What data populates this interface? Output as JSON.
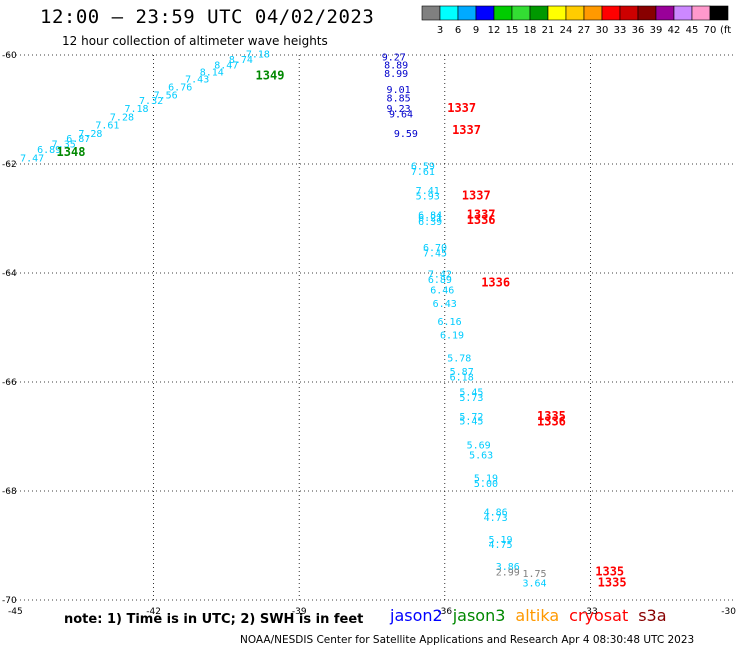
{
  "title": "12:00 – 23:59 UTC 04/02/2023",
  "subtitle": "12 hour collection of altimeter wave heights",
  "colorbar": {
    "colors": [
      "#808080",
      "#00ffff",
      "#00aaff",
      "#0000ff",
      "#00cc00",
      "#33dd33",
      "#009900",
      "#ffff00",
      "#ffcc00",
      "#ff9900",
      "#ff0000",
      "#cc0000",
      "#880000",
      "#990099",
      "#cc88ff",
      "#ff99cc",
      "#000000"
    ],
    "labels": [
      "3",
      "6",
      "9",
      "12",
      "15",
      "18",
      "21",
      "24",
      "27",
      "30",
      "33",
      "36",
      "39",
      "42",
      "45",
      "70"
    ],
    "unit": "(ft)"
  },
  "note": "note: 1) Time is in UTC; 2) SWH is in feet",
  "legend": [
    {
      "name": "jason2",
      "color": "#0000ff"
    },
    {
      "name": "jason3",
      "color": "#008800"
    },
    {
      "name": "altika",
      "color": "#ff9900"
    },
    {
      "name": "cryosat",
      "color": "#ff0000"
    },
    {
      "name": "s3a",
      "color": "#880000"
    }
  ],
  "credit": "NOAA/NESDIS Center for Satellite Applications and Research    Apr  4 08:30:48 UTC 2023",
  "chart_data": {
    "type": "scatter",
    "xlim": [
      -45,
      -30
    ],
    "ylim": [
      -70,
      -60
    ],
    "xticks": [
      "-45",
      "-42",
      "-39",
      "-36",
      "-33",
      "-30"
    ],
    "xtick_values": [
      -45,
      -42,
      -39,
      -36,
      -33,
      -30
    ],
    "yticks": [
      "-60",
      "-62",
      "-64",
      "-66",
      "-68",
      "-70"
    ],
    "ytick_values": [
      -60,
      -62,
      -64,
      -66,
      -68,
      -70
    ],
    "grid": true,
    "series": [
      {
        "name": "jason3",
        "color": "#00ccff",
        "points": [
          {
            "lon": -44.75,
            "lat": -61.95,
            "v": "7.47"
          },
          {
            "lon": -44.4,
            "lat": -61.8,
            "v": "6.89"
          },
          {
            "lon": -44.1,
            "lat": -61.7,
            "v": "7.35"
          },
          {
            "lon": -43.8,
            "lat": -61.6,
            "v": "6.87"
          },
          {
            "lon": -43.55,
            "lat": -61.5,
            "v": "7.28"
          },
          {
            "lon": -43.2,
            "lat": -61.35,
            "v": "7.61"
          },
          {
            "lon": -42.9,
            "lat": -61.2,
            "v": "7.28"
          },
          {
            "lon": -42.6,
            "lat": -61.05,
            "v": "7.18"
          },
          {
            "lon": -42.3,
            "lat": -60.9,
            "v": "7.32"
          },
          {
            "lon": -42.0,
            "lat": -60.8,
            "v": "7.56"
          },
          {
            "lon": -41.7,
            "lat": -60.65,
            "v": "6.76"
          },
          {
            "lon": -41.35,
            "lat": -60.5,
            "v": "7.43"
          },
          {
            "lon": -41.05,
            "lat": -60.38,
            "v": "8.14"
          },
          {
            "lon": -40.75,
            "lat": -60.25,
            "v": "8.47"
          },
          {
            "lon": -40.45,
            "lat": -60.15,
            "v": "8.74"
          },
          {
            "lon": -40.1,
            "lat": -60.05,
            "v": "7.18"
          }
        ]
      },
      {
        "name": "jason3 track",
        "color": "#008800",
        "bold": true,
        "points": [
          {
            "lon": -44.0,
            "lat": -61.85,
            "v": "1348"
          },
          {
            "lon": -39.9,
            "lat": -60.45,
            "v": "1349"
          }
        ]
      },
      {
        "name": "jason2",
        "color": "#0000cc",
        "points": [
          {
            "lon": -37.3,
            "lat": -60.1,
            "v": "9.27"
          },
          {
            "lon": -37.25,
            "lat": -60.25,
            "v": "8.89"
          },
          {
            "lon": -37.25,
            "lat": -60.4,
            "v": "8.99"
          },
          {
            "lon": -37.2,
            "lat": -60.7,
            "v": "9.01"
          },
          {
            "lon": -37.2,
            "lat": -60.85,
            "v": "8.85"
          },
          {
            "lon": -37.2,
            "lat": -61.05,
            "v": "9.23"
          },
          {
            "lon": -37.15,
            "lat": -61.15,
            "v": "9.64"
          },
          {
            "lon": -37.05,
            "lat": -61.5,
            "v": "9.59"
          }
        ]
      },
      {
        "name": "cryosat",
        "color": "#ff0000",
        "bold": true,
        "points": [
          {
            "lon": -35.95,
            "lat": -61.05,
            "v": "1337"
          },
          {
            "lon": -35.85,
            "lat": -61.45,
            "v": "1337"
          },
          {
            "lon": -35.65,
            "lat": -62.65,
            "v": "1337"
          },
          {
            "lon": -35.55,
            "lat": -63.0,
            "v": "1337"
          },
          {
            "lon": -35.55,
            "lat": -63.1,
            "v": "1336"
          },
          {
            "lon": -35.25,
            "lat": -64.25,
            "v": "1336"
          },
          {
            "lon": -34.1,
            "lat": -66.7,
            "v": "1335"
          },
          {
            "lon": -34.1,
            "lat": -66.8,
            "v": "1336"
          },
          {
            "lon": -32.9,
            "lat": -69.55,
            "v": "1335"
          },
          {
            "lon": -32.85,
            "lat": -69.75,
            "v": "1335"
          }
        ]
      },
      {
        "name": "altika",
        "color": "#00ccff",
        "points": [
          {
            "lon": -36.7,
            "lat": -62.1,
            "v": "6.59"
          },
          {
            "lon": -36.7,
            "lat": -62.2,
            "v": "7.61"
          },
          {
            "lon": -36.6,
            "lat": -62.55,
            "v": "7.41"
          },
          {
            "lon": -36.6,
            "lat": -62.65,
            "v": "5.93"
          },
          {
            "lon": -36.55,
            "lat": -63.0,
            "v": "6.84"
          },
          {
            "lon": -36.55,
            "lat": -63.05,
            "v": "6.21"
          },
          {
            "lon": -36.55,
            "lat": -63.12,
            "v": "6.39"
          },
          {
            "lon": -36.45,
            "lat": -63.6,
            "v": "6.70"
          },
          {
            "lon": -36.45,
            "lat": -63.7,
            "v": "7.45"
          },
          {
            "lon": -36.35,
            "lat": -64.08,
            "v": "7.42"
          },
          {
            "lon": -36.35,
            "lat": -64.18,
            "v": "6.89"
          },
          {
            "lon": -36.3,
            "lat": -64.38,
            "v": "6.46"
          },
          {
            "lon": -36.25,
            "lat": -64.62,
            "v": "6.43"
          },
          {
            "lon": -36.15,
            "lat": -64.95,
            "v": "6.16"
          },
          {
            "lon": -36.1,
            "lat": -65.2,
            "v": "6.19"
          },
          {
            "lon": -35.95,
            "lat": -65.62,
            "v": "5.78"
          },
          {
            "lon": -35.9,
            "lat": -65.87,
            "v": "5.87"
          },
          {
            "lon": -35.9,
            "lat": -65.97,
            "v": "6.18"
          },
          {
            "lon": -35.7,
            "lat": -66.25,
            "v": "5.45"
          },
          {
            "lon": -35.7,
            "lat": -66.35,
            "v": "5.73"
          },
          {
            "lon": -35.7,
            "lat": -66.7,
            "v": "5.72"
          },
          {
            "lon": -35.7,
            "lat": -66.78,
            "v": "5.45"
          },
          {
            "lon": -35.55,
            "lat": -67.22,
            "v": "5.69"
          },
          {
            "lon": -35.5,
            "lat": -67.4,
            "v": "5.63"
          },
          {
            "lon": -35.4,
            "lat": -67.83,
            "v": "5.19"
          },
          {
            "lon": -35.4,
            "lat": -67.93,
            "v": "5.00"
          },
          {
            "lon": -35.2,
            "lat": -68.45,
            "v": "4.86"
          },
          {
            "lon": -35.2,
            "lat": -68.55,
            "v": "4.73"
          },
          {
            "lon": -35.1,
            "lat": -68.95,
            "v": "5.19"
          },
          {
            "lon": -35.1,
            "lat": -69.05,
            "v": "4.75"
          },
          {
            "lon": -34.95,
            "lat": -69.45,
            "v": "3.86"
          },
          {
            "lon": -34.4,
            "lat": -69.75,
            "v": "3.64"
          }
        ]
      },
      {
        "name": "gray",
        "color": "#808080",
        "points": [
          {
            "lon": -34.95,
            "lat": -69.55,
            "v": "2.99"
          },
          {
            "lon": -34.4,
            "lat": -69.58,
            "v": "1.75"
          }
        ]
      }
    ]
  }
}
